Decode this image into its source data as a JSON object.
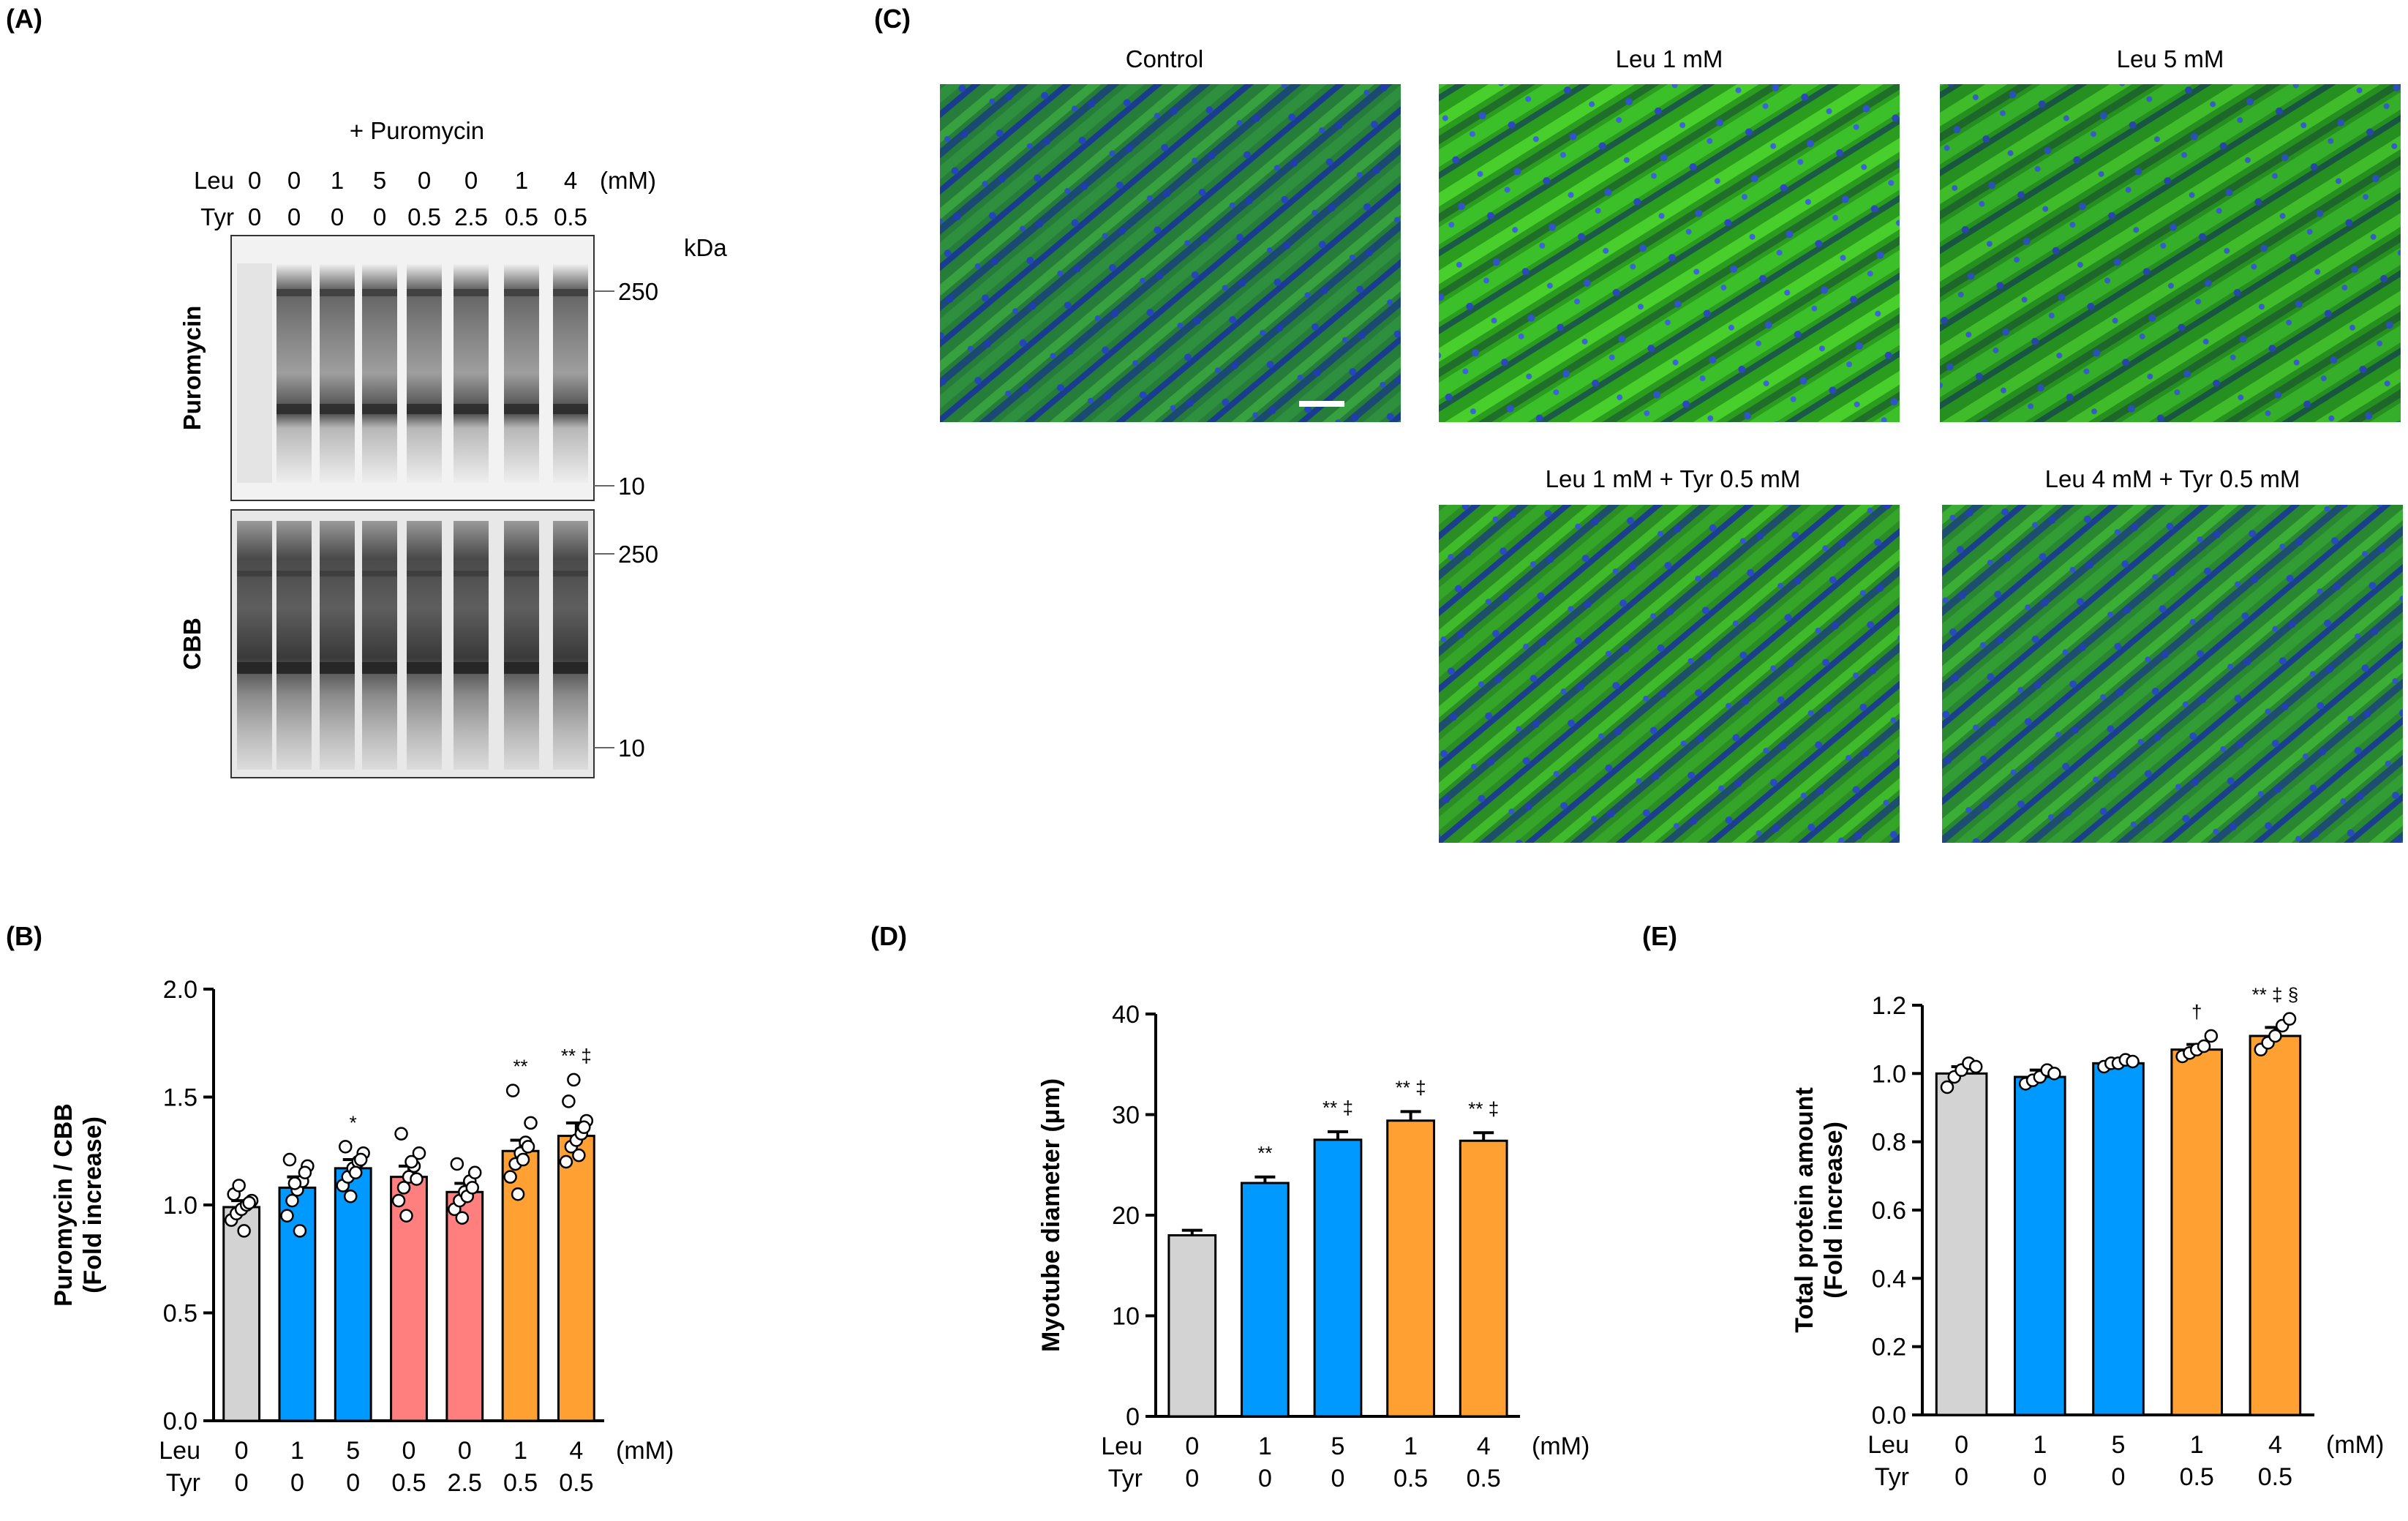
{
  "panel_labels": {
    "A": "(A)",
    "B": "(B)",
    "C": "(C)",
    "D": "(D)",
    "E": "(E)"
  },
  "blot": {
    "treatment": "+ Puromycin",
    "leu_label": "Leu",
    "tyr_label": "Tyr",
    "unit": "(mM)",
    "leu_values": [
      "0",
      "0",
      "1",
      "5",
      "0",
      "0",
      "1",
      "4"
    ],
    "tyr_values": [
      "0",
      "0",
      "0",
      "0",
      "0.5",
      "2.5",
      "0.5",
      "0.5"
    ],
    "kda_label": "kDa",
    "upper": {
      "label": "Puromycin",
      "markers": [
        "250",
        "10"
      ]
    },
    "lower": {
      "label": "CBB",
      "markers": [
        "250",
        "10"
      ]
    }
  },
  "images": {
    "titles": [
      "Control",
      "Leu 1 mM",
      "Leu 5 mM",
      "Leu 1 mM + Tyr 0.5 mM",
      "Leu 4 mM + Tyr 0.5 mM"
    ]
  },
  "colors": {
    "control": "#d3d3d3",
    "leu": "#0099ff",
    "tyr": "#ff7f7f",
    "combo": "#ffa033",
    "stain_green": "#2ec21e",
    "stain_blue": "#1a3cc8"
  },
  "chart_data": [
    {
      "id": "B",
      "type": "bar",
      "ylabel_lines": [
        "Puromycin / CBB",
        "(Fold increase)"
      ],
      "ylim": [
        0,
        2.0
      ],
      "yticks": [
        "0.0",
        "0.5",
        "1.0",
        "1.5",
        "2.0"
      ],
      "row_labels": [
        "Leu",
        "Tyr"
      ],
      "unit": "(mM)",
      "leu": [
        "0",
        "1",
        "5",
        "0",
        "0",
        "1",
        "4"
      ],
      "tyr": [
        "0",
        "0",
        "0",
        "0.5",
        "2.5",
        "0.5",
        "0.5"
      ],
      "groups": [
        "control",
        "leu",
        "leu",
        "tyr",
        "tyr",
        "combo",
        "combo"
      ],
      "values": [
        0.99,
        1.08,
        1.17,
        1.13,
        1.06,
        1.25,
        1.32
      ],
      "sem": [
        0.03,
        0.05,
        0.04,
        0.05,
        0.04,
        0.05,
        0.06
      ],
      "significance": [
        "",
        "",
        "*",
        "",
        "",
        "**",
        "** ‡"
      ],
      "points": [
        [
          0.93,
          0.96,
          0.98,
          1.0,
          1.02,
          1.05,
          1.09,
          0.88,
          1.01
        ],
        [
          0.95,
          1.02,
          1.07,
          1.11,
          1.18,
          1.21,
          1.1,
          0.88,
          1.15
        ],
        [
          1.09,
          1.13,
          1.17,
          1.2,
          1.24,
          1.27,
          1.04,
          1.15,
          1.21
        ],
        [
          1.02,
          1.08,
          1.13,
          1.18,
          1.24,
          1.33,
          0.95,
          1.2,
          1.12
        ],
        [
          0.98,
          1.02,
          1.06,
          1.11,
          1.15,
          1.19,
          0.94,
          1.04,
          1.08
        ],
        [
          1.13,
          1.19,
          1.24,
          1.29,
          1.38,
          1.53,
          1.05,
          1.21,
          1.27
        ],
        [
          1.2,
          1.27,
          1.3,
          1.33,
          1.39,
          1.48,
          1.58,
          1.23,
          1.36
        ]
      ]
    },
    {
      "id": "D",
      "type": "bar",
      "ylabel_lines": [
        "Myotube diameter (μm)"
      ],
      "ylim": [
        0,
        40
      ],
      "yticks": [
        "0",
        "10",
        "20",
        "30",
        "40"
      ],
      "row_labels": [
        "Leu",
        "Tyr"
      ],
      "unit": "(mM)",
      "leu": [
        "0",
        "1",
        "5",
        "1",
        "4"
      ],
      "tyr": [
        "0",
        "0",
        "0",
        "0.5",
        "0.5"
      ],
      "groups": [
        "control",
        "leu",
        "leu",
        "combo",
        "combo"
      ],
      "values": [
        18.0,
        23.2,
        27.5,
        29.4,
        27.4
      ],
      "sem": [
        0.5,
        0.6,
        0.8,
        0.9,
        0.8
      ],
      "significance": [
        "",
        "**",
        "** ‡",
        "** ‡",
        "** ‡"
      ],
      "points": []
    },
    {
      "id": "E",
      "type": "bar",
      "ylabel_lines": [
        "Total protein amount",
        "(Fold increase)"
      ],
      "ylim": [
        0,
        1.2
      ],
      "yticks": [
        "0.0",
        "0.2",
        "0.4",
        "0.6",
        "0.8",
        "1.0",
        "1.2"
      ],
      "row_labels": [
        "Leu",
        "Tyr"
      ],
      "unit": "(mM)",
      "leu": [
        "0",
        "1",
        "5",
        "1",
        "4"
      ],
      "tyr": [
        "0",
        "0",
        "0",
        "0.5",
        "0.5"
      ],
      "groups": [
        "control",
        "leu",
        "leu",
        "combo",
        "combo"
      ],
      "values": [
        1.0,
        0.99,
        1.03,
        1.07,
        1.11
      ],
      "sem": [
        0.02,
        0.02,
        0.01,
        0.015,
        0.025
      ],
      "significance": [
        "",
        "",
        "",
        "†",
        "** ‡ §"
      ],
      "points": [
        [
          0.96,
          0.99,
          1.01,
          1.03,
          1.02
        ],
        [
          0.97,
          0.98,
          0.99,
          1.01,
          1.0
        ],
        [
          1.02,
          1.03,
          1.03,
          1.04,
          1.035
        ],
        [
          1.05,
          1.06,
          1.07,
          1.08,
          1.11
        ],
        [
          1.07,
          1.09,
          1.11,
          1.14,
          1.16
        ]
      ]
    }
  ]
}
